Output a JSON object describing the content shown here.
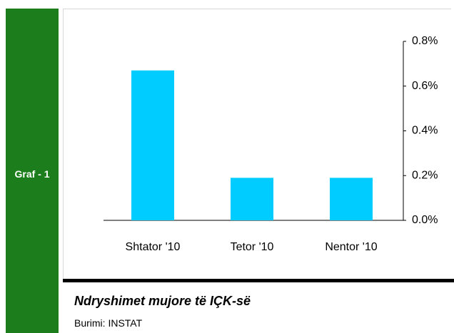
{
  "side_label": "Graf - 1",
  "chart_data": {
    "type": "bar",
    "title": "Ndryshimet mujore të IÇK-së",
    "source": "Burimi: INSTAT",
    "categories": [
      "Shtator '10",
      "Tetor '10",
      "Nentor '10"
    ],
    "values": [
      0.67,
      0.19,
      0.19
    ],
    "color": "#00ccff",
    "ylim": [
      0,
      0.8
    ],
    "yticks": [
      {
        "value": 0,
        "label": "0.0%"
      },
      {
        "value": 0.2,
        "label": "0.2%"
      },
      {
        "value": 0.4,
        "label": "0.4%"
      },
      {
        "value": 0.6,
        "label": "0.6%"
      },
      {
        "value": 0.8,
        "label": "0.8%"
      }
    ],
    "axis_side": "right",
    "grid": false
  }
}
